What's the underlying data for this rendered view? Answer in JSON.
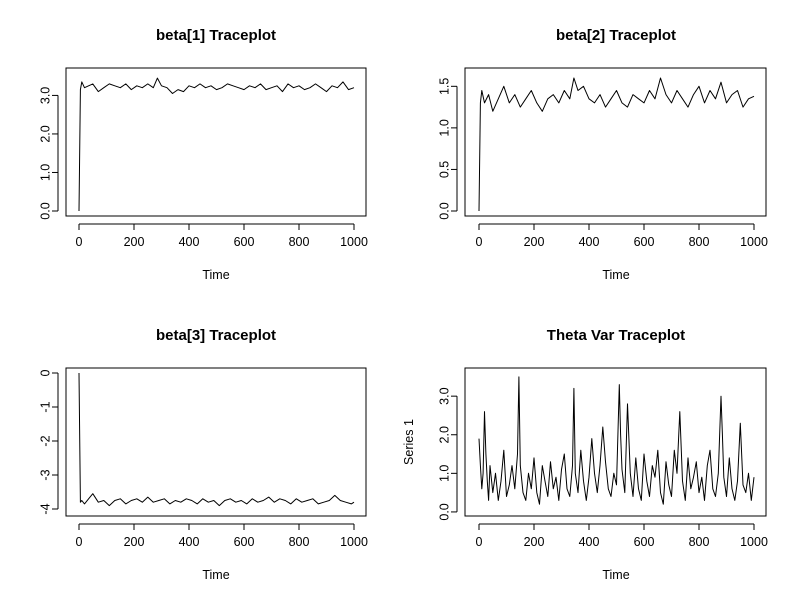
{
  "chart_data": [
    {
      "type": "line",
      "title": "beta[1] Traceplot",
      "xlabel": "Time",
      "ylabel": "",
      "xlim": [
        0,
        1000
      ],
      "ylim": [
        0,
        3.4
      ],
      "x_ticks": [
        0,
        200,
        400,
        600,
        800,
        1000
      ],
      "x_tick_labels": [
        "0",
        "200",
        "400",
        "600",
        "800",
        "1000"
      ],
      "y_ticks": [
        0,
        1,
        2,
        3
      ],
      "y_tick_labels": [
        "0.0",
        "1.0",
        "2.0",
        "3.0"
      ],
      "grid": false,
      "series": [
        {
          "x": [
            0,
            5,
            10,
            20,
            35,
            50,
            70,
            90,
            110,
            130,
            150,
            170,
            190,
            210,
            230,
            250,
            270,
            285,
            300,
            320,
            340,
            360,
            380,
            400,
            420,
            440,
            460,
            480,
            500,
            520,
            540,
            560,
            580,
            600,
            620,
            640,
            660,
            680,
            700,
            720,
            740,
            760,
            780,
            800,
            820,
            840,
            860,
            880,
            900,
            920,
            940,
            960,
            980,
            1000
          ],
          "y": [
            0.0,
            3.15,
            3.35,
            3.2,
            3.25,
            3.3,
            3.1,
            3.2,
            3.3,
            3.25,
            3.2,
            3.3,
            3.15,
            3.25,
            3.2,
            3.3,
            3.2,
            3.45,
            3.25,
            3.2,
            3.05,
            3.15,
            3.1,
            3.25,
            3.2,
            3.3,
            3.2,
            3.25,
            3.15,
            3.2,
            3.3,
            3.25,
            3.2,
            3.15,
            3.25,
            3.2,
            3.3,
            3.15,
            3.2,
            3.25,
            3.1,
            3.3,
            3.2,
            3.25,
            3.15,
            3.2,
            3.3,
            3.2,
            3.1,
            3.25,
            3.2,
            3.35,
            3.15,
            3.2
          ]
        }
      ]
    },
    {
      "type": "line",
      "title": "beta[2] Traceplot",
      "xlabel": "Time",
      "ylabel": "",
      "xlim": [
        0,
        1000
      ],
      "ylim": [
        0,
        1.6
      ],
      "x_ticks": [
        0,
        200,
        400,
        600,
        800,
        1000
      ],
      "x_tick_labels": [
        "0",
        "200",
        "400",
        "600",
        "800",
        "1000"
      ],
      "y_ticks": [
        0,
        0.5,
        1.0,
        1.5
      ],
      "y_tick_labels": [
        "0.0",
        "0.5",
        "1.0",
        "1.5"
      ],
      "grid": false,
      "series": [
        {
          "x": [
            0,
            5,
            10,
            20,
            35,
            50,
            70,
            90,
            110,
            130,
            150,
            170,
            190,
            210,
            230,
            250,
            270,
            290,
            310,
            330,
            345,
            360,
            380,
            400,
            420,
            440,
            460,
            480,
            500,
            520,
            540,
            560,
            580,
            600,
            620,
            640,
            660,
            680,
            700,
            720,
            740,
            760,
            780,
            800,
            820,
            840,
            860,
            880,
            900,
            920,
            940,
            960,
            980,
            1000
          ],
          "y": [
            0.0,
            1.3,
            1.45,
            1.3,
            1.4,
            1.2,
            1.35,
            1.5,
            1.3,
            1.4,
            1.25,
            1.35,
            1.45,
            1.3,
            1.2,
            1.35,
            1.4,
            1.3,
            1.45,
            1.35,
            1.6,
            1.45,
            1.5,
            1.35,
            1.3,
            1.4,
            1.25,
            1.35,
            1.45,
            1.3,
            1.25,
            1.4,
            1.35,
            1.3,
            1.45,
            1.35,
            1.6,
            1.4,
            1.3,
            1.45,
            1.35,
            1.25,
            1.4,
            1.5,
            1.3,
            1.45,
            1.35,
            1.55,
            1.3,
            1.4,
            1.45,
            1.25,
            1.35,
            1.38
          ]
        }
      ]
    },
    {
      "type": "line",
      "title": "beta[3] Traceplot",
      "xlabel": "Time",
      "ylabel": "",
      "xlim": [
        0,
        1000
      ],
      "ylim": [
        -4,
        0
      ],
      "x_ticks": [
        0,
        200,
        400,
        600,
        800,
        1000
      ],
      "x_tick_labels": [
        "0",
        "200",
        "400",
        "600",
        "800",
        "1000"
      ],
      "y_ticks": [
        -4,
        -3,
        -2,
        -1,
        0
      ],
      "y_tick_labels": [
        "-4",
        "-3",
        "-2",
        "-1",
        "0"
      ],
      "grid": false,
      "series": [
        {
          "x": [
            0,
            5,
            10,
            20,
            35,
            50,
            70,
            90,
            110,
            130,
            150,
            170,
            190,
            210,
            230,
            250,
            270,
            290,
            310,
            330,
            350,
            370,
            390,
            410,
            430,
            450,
            470,
            490,
            510,
            530,
            550,
            570,
            590,
            610,
            630,
            650,
            670,
            690,
            710,
            730,
            750,
            770,
            790,
            810,
            830,
            850,
            870,
            890,
            910,
            930,
            950,
            970,
            990,
            1000
          ],
          "y": [
            0.0,
            -3.8,
            -3.75,
            -3.85,
            -3.7,
            -3.55,
            -3.8,
            -3.75,
            -3.9,
            -3.75,
            -3.7,
            -3.85,
            -3.75,
            -3.7,
            -3.8,
            -3.65,
            -3.8,
            -3.75,
            -3.7,
            -3.85,
            -3.75,
            -3.8,
            -3.7,
            -3.75,
            -3.85,
            -3.7,
            -3.8,
            -3.75,
            -3.9,
            -3.75,
            -3.7,
            -3.8,
            -3.75,
            -3.85,
            -3.7,
            -3.8,
            -3.75,
            -3.65,
            -3.8,
            -3.7,
            -3.75,
            -3.85,
            -3.7,
            -3.8,
            -3.75,
            -3.7,
            -3.85,
            -3.8,
            -3.75,
            -3.6,
            -3.75,
            -3.8,
            -3.85,
            -3.8
          ]
        }
      ]
    },
    {
      "type": "line",
      "title": "Theta Var Traceplot",
      "xlabel": "Time",
      "ylabel": "Series 1",
      "xlim": [
        0,
        1000
      ],
      "ylim": [
        0.05,
        3.6
      ],
      "x_ticks": [
        0,
        200,
        400,
        600,
        800,
        1000
      ],
      "x_tick_labels": [
        "0",
        "200",
        "400",
        "600",
        "800",
        "1000"
      ],
      "y_ticks": [
        0,
        1,
        2,
        3
      ],
      "y_tick_labels": [
        "0.0",
        "1.0",
        "2.0",
        "3.0"
      ],
      "grid": false,
      "series": [
        {
          "x": [
            0,
            5,
            10,
            15,
            20,
            25,
            30,
            35,
            40,
            50,
            60,
            70,
            80,
            90,
            100,
            110,
            120,
            130,
            140,
            145,
            150,
            160,
            170,
            180,
            190,
            200,
            210,
            220,
            230,
            240,
            250,
            260,
            270,
            280,
            290,
            300,
            310,
            320,
            330,
            340,
            345,
            350,
            360,
            370,
            380,
            390,
            400,
            410,
            420,
            430,
            440,
            450,
            460,
            470,
            480,
            490,
            500,
            510,
            515,
            520,
            530,
            540,
            550,
            560,
            570,
            580,
            590,
            600,
            610,
            620,
            630,
            640,
            650,
            660,
            670,
            680,
            690,
            700,
            710,
            720,
            730,
            740,
            750,
            760,
            770,
            780,
            790,
            800,
            810,
            820,
            830,
            840,
            850,
            860,
            870,
            880,
            885,
            890,
            900,
            910,
            920,
            930,
            940,
            950,
            960,
            970,
            980,
            990,
            1000
          ],
          "y": [
            1.9,
            1.2,
            0.6,
            1.0,
            2.6,
            1.5,
            0.8,
            0.3,
            1.2,
            0.5,
            1.0,
            0.3,
            0.8,
            1.6,
            0.4,
            0.7,
            1.2,
            0.6,
            1.5,
            3.5,
            1.2,
            0.5,
            0.3,
            1.0,
            0.6,
            1.4,
            0.5,
            0.2,
            1.2,
            0.8,
            0.4,
            1.3,
            0.6,
            0.9,
            0.3,
            1.1,
            1.5,
            0.6,
            0.4,
            1.2,
            3.2,
            1.0,
            0.5,
            1.6,
            0.8,
            0.3,
            0.9,
            1.9,
            1.0,
            0.5,
            1.2,
            2.2,
            1.3,
            0.6,
            0.4,
            1.0,
            0.7,
            3.3,
            2.0,
            1.1,
            0.5,
            2.8,
            1.0,
            0.4,
            1.4,
            0.6,
            0.3,
            1.5,
            0.8,
            0.4,
            1.2,
            0.9,
            1.6,
            0.5,
            0.2,
            1.3,
            0.7,
            0.4,
            1.6,
            1.0,
            2.6,
            0.8,
            0.3,
            1.4,
            0.6,
            0.9,
            1.3,
            0.5,
            0.9,
            0.3,
            1.2,
            1.6,
            0.6,
            0.4,
            1.0,
            3.0,
            2.0,
            0.9,
            0.4,
            1.4,
            0.6,
            0.3,
            0.8,
            2.3,
            0.7,
            0.5,
            1.0,
            0.3,
            0.9
          ]
        }
      ]
    }
  ]
}
